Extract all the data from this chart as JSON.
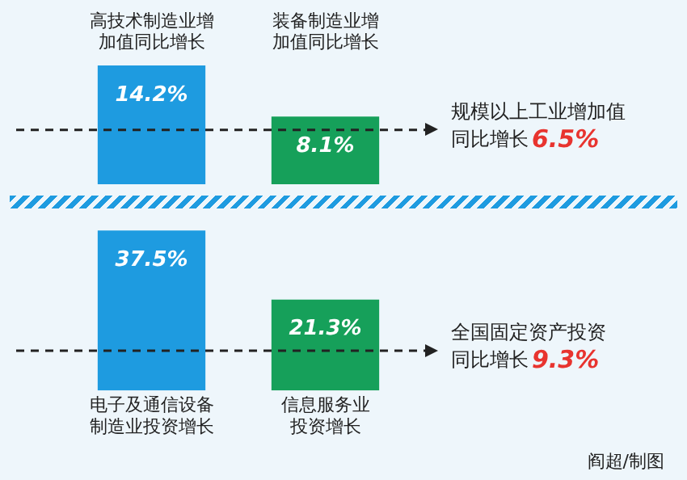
{
  "chart_data": [
    {
      "type": "bar",
      "categories": [
        "高技术制造业增加值同比增长",
        "装备制造业增加值同比增长"
      ],
      "values": [
        14.2,
        8.1
      ],
      "colors": [
        "#1e9be0",
        "#16a05a"
      ],
      "value_labels": [
        "14.2%",
        "8.1%"
      ],
      "tick_labels": "x",
      "grid": false,
      "legend": false,
      "ref_lines": [
        {
          "axis": "y",
          "value": 6.5,
          "label": "规模以上工业增加值同比增长6.5%",
          "color": "#222222",
          "line_style": "dashed"
        }
      ]
    },
    {
      "type": "bar",
      "categories": [
        "电子及通信设备制造业投资增长",
        "信息服务业投资增长"
      ],
      "values": [
        37.5,
        21.3
      ],
      "colors": [
        "#1e9be0",
        "#16a05a"
      ],
      "value_labels": [
        "37.5%",
        "21.3%"
      ],
      "tick_labels": "x",
      "grid": false,
      "legend": false,
      "ref_lines": [
        {
          "axis": "y",
          "value": 9.3,
          "label": "全国固定资产投资同比增长9.3%",
          "color": "#222222",
          "line_style": "dashed"
        }
      ],
      "annotations": [
        "阎超/制图"
      ]
    }
  ]
}
